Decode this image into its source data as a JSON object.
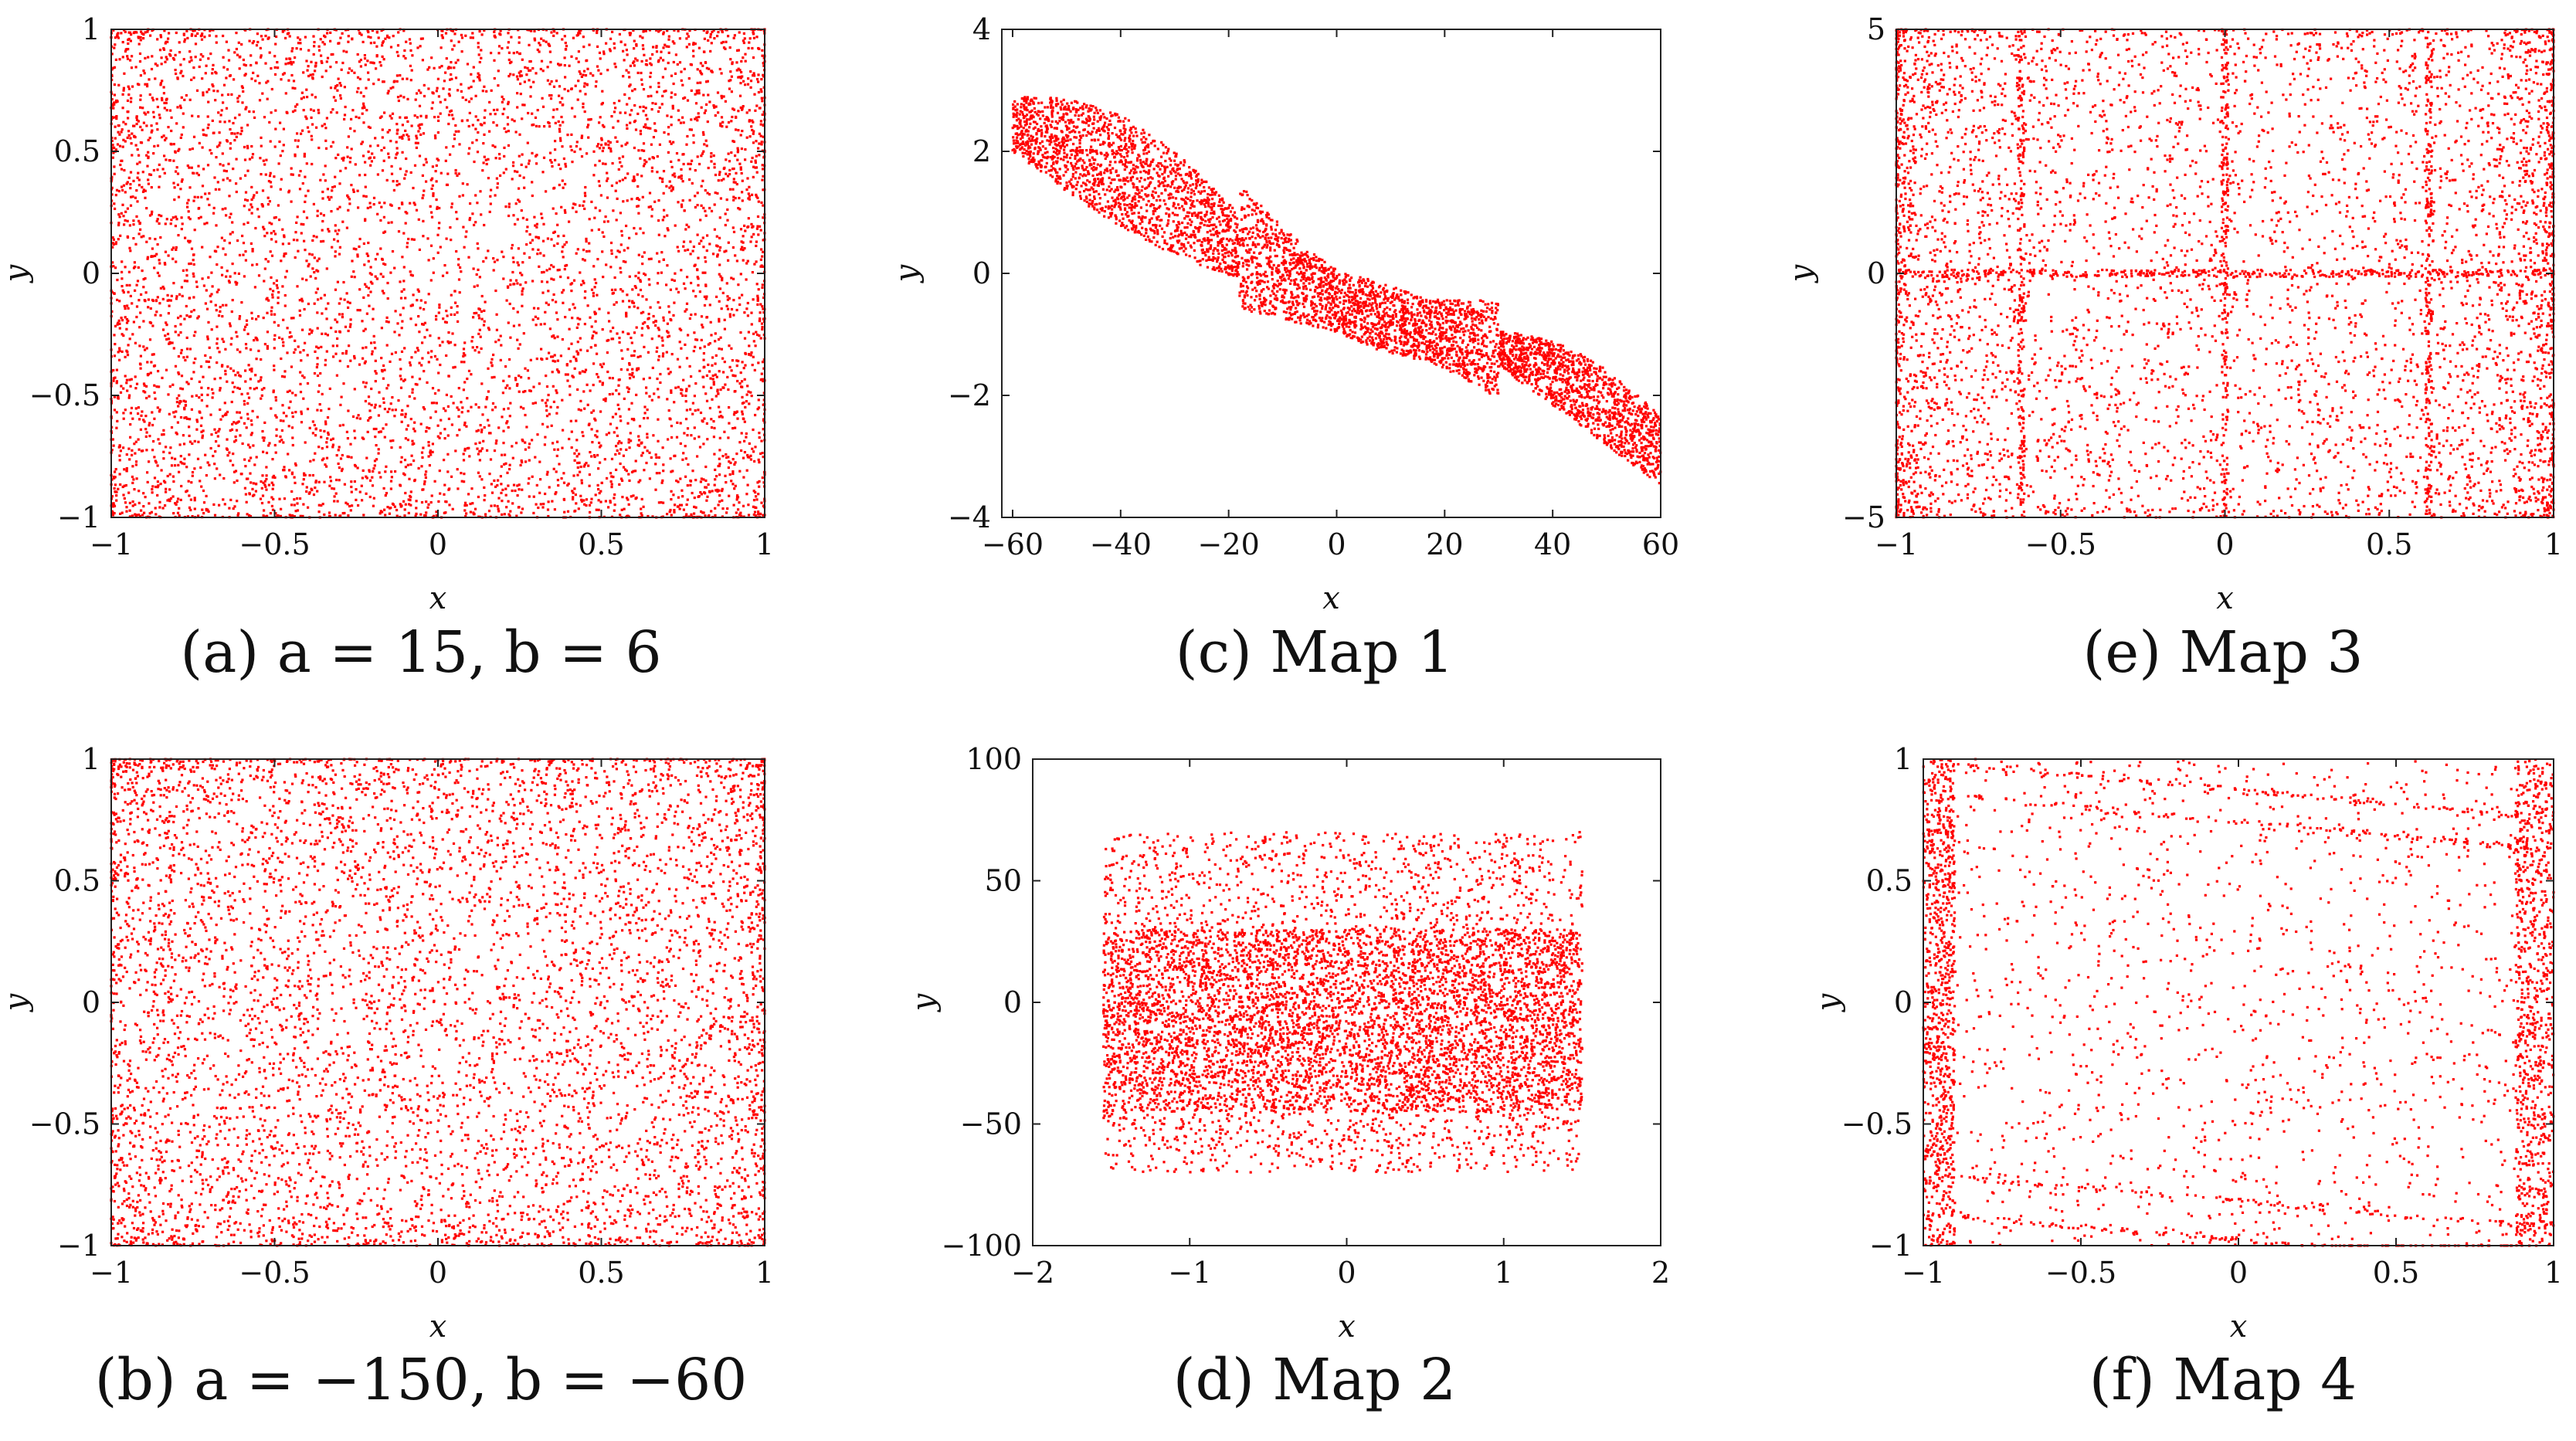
{
  "figure": {
    "point_color": "#ff0000",
    "panels_note": "Six scatter plots of chaotic map attractors"
  },
  "chart_data": [
    {
      "id": "a",
      "type": "scatter",
      "caption": "(a) a = 15, b = 6",
      "xlabel": "x",
      "ylabel": "y",
      "xlim": [
        -1,
        1
      ],
      "ylim": [
        -1,
        1
      ],
      "xticks": [
        -1,
        -0.5,
        0,
        0.5,
        1
      ],
      "xtick_labels": [
        "−1",
        "−0.5",
        "0",
        "0.5",
        "1"
      ],
      "yticks": [
        -1,
        -0.5,
        0,
        0.5,
        1
      ],
      "ytick_labels": [
        "−1",
        "−0.5",
        "0",
        "0.5",
        "1"
      ],
      "distribution": {
        "kind": "uniform",
        "x": [
          -1,
          1
        ],
        "y": [
          -1,
          1
        ],
        "edge_dense": true,
        "count": 6000
      }
    },
    {
      "id": "b",
      "type": "scatter",
      "caption": "(b) a = −150, b = −60",
      "xlabel": "x",
      "ylabel": "y",
      "xlim": [
        -1,
        1
      ],
      "ylim": [
        -1,
        1
      ],
      "xticks": [
        -1,
        -0.5,
        0,
        0.5,
        1
      ],
      "xtick_labels": [
        "−1",
        "−0.5",
        "0",
        "0.5",
        "1"
      ],
      "yticks": [
        -1,
        -0.5,
        0,
        0.5,
        1
      ],
      "ytick_labels": [
        "−1",
        "−0.5",
        "0",
        "0.5",
        "1"
      ],
      "distribution": {
        "kind": "uniform",
        "x": [
          -1,
          1
        ],
        "y": [
          -1,
          1
        ],
        "edge_dense": true,
        "count": 6000
      }
    },
    {
      "id": "c",
      "type": "scatter",
      "caption": "(c) Map 1",
      "xlabel": "x",
      "ylabel": "y",
      "xlim": [
        -62,
        60
      ],
      "ylim": [
        -4,
        4
      ],
      "xticks": [
        -60,
        -40,
        -20,
        0,
        20,
        40,
        60
      ],
      "xtick_labels": [
        "−60",
        "−40",
        "−20",
        "0",
        "20",
        "40",
        "60"
      ],
      "yticks": [
        -4,
        -2,
        0,
        2,
        4
      ],
      "ytick_labels": [
        "−4",
        "−2",
        "0",
        "2",
        "4"
      ],
      "distribution": {
        "kind": "band",
        "x": [
          -60,
          60
        ],
        "y_start": [
          2.9,
          2.0
        ],
        "y_end": [
          -2.6,
          -3.2
        ],
        "width": 1.3,
        "count": 5000
      }
    },
    {
      "id": "d",
      "type": "scatter",
      "caption": "(d) Map 2",
      "xlabel": "x",
      "ylabel": "y",
      "xlim": [
        -2,
        2
      ],
      "ylim": [
        -100,
        100
      ],
      "xticks": [
        -2,
        -1,
        0,
        1,
        2
      ],
      "xtick_labels": [
        "−2",
        "−1",
        "0",
        "1",
        "2"
      ],
      "yticks": [
        -100,
        -50,
        0,
        50,
        100
      ],
      "ytick_labels": [
        "−100",
        "−50",
        "0",
        "50",
        "100"
      ],
      "distribution": {
        "kind": "box",
        "x": [
          -1.55,
          1.5
        ],
        "y": [
          -70,
          70
        ],
        "core_y": [
          -45,
          30
        ],
        "count": 7000
      }
    },
    {
      "id": "e",
      "type": "scatter",
      "caption": "(e) Map 3",
      "xlabel": "x",
      "ylabel": "y",
      "xlim": [
        -1,
        1
      ],
      "ylim": [
        -5,
        5
      ],
      "xticks": [
        -1,
        -0.5,
        0,
        0.5,
        1
      ],
      "xtick_labels": [
        "−1",
        "−0.5",
        "0",
        "0.5",
        "1"
      ],
      "yticks": [
        -5,
        0,
        5
      ],
      "ytick_labels": [
        "−5",
        "0",
        "5"
      ],
      "distribution": {
        "kind": "uniform_lines",
        "x": [
          -1,
          1
        ],
        "y": [
          -5,
          5
        ],
        "vlines": [
          -0.62,
          0,
          0.62
        ],
        "hlines": [
          0
        ],
        "count": 6000
      }
    },
    {
      "id": "f",
      "type": "scatter",
      "caption": "(f) Map 4",
      "xlabel": "x",
      "ylabel": "y",
      "xlim": [
        -1,
        1
      ],
      "ylim": [
        -1,
        1
      ],
      "xticks": [
        -1,
        -0.5,
        0,
        0.5,
        1
      ],
      "xtick_labels": [
        "−1",
        "−0.5",
        "0",
        "0.5",
        "1"
      ],
      "yticks": [
        -1,
        -0.5,
        0,
        0.5,
        1
      ],
      "ytick_labels": [
        "−1",
        "−0.5",
        "0",
        "0.5",
        "1"
      ],
      "distribution": {
        "kind": "sparse_bands",
        "x": [
          -0.96,
          0.93
        ],
        "y": [
          -1,
          1
        ],
        "edge_bands": [
          [
            -1,
            -0.9
          ],
          [
            0.88,
            1
          ]
        ],
        "count": 3500
      }
    }
  ]
}
